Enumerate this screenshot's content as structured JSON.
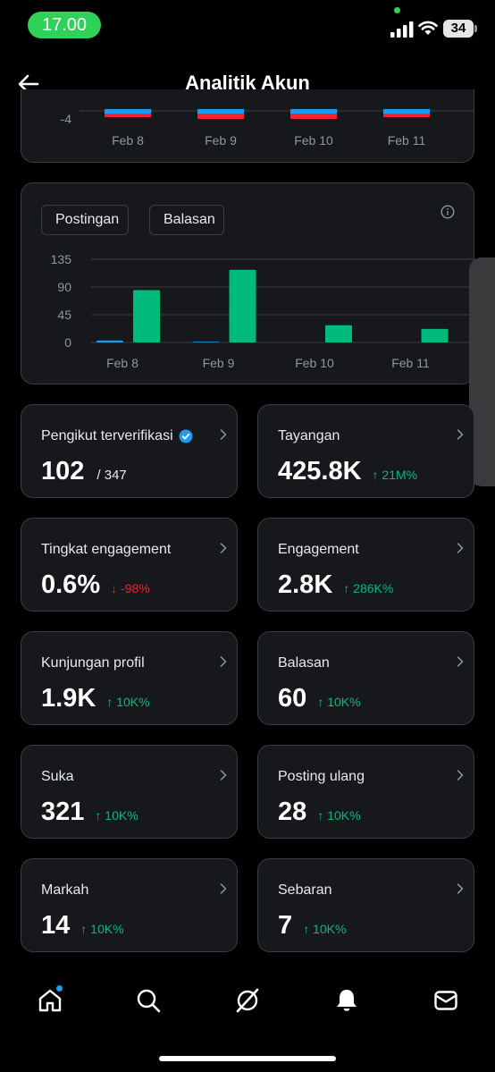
{
  "status_bar": {
    "time": "17.00",
    "battery": "34"
  },
  "header": {
    "title": "Analitik Akun"
  },
  "top_chart": {
    "y_tick": "-4",
    "x_labels": [
      "Feb 8",
      "Feb 9",
      "Feb 10",
      "Feb 11"
    ]
  },
  "legend": {
    "posts": "Postingan",
    "replies": "Balasan"
  },
  "colors": {
    "posts": "#1d9bf0",
    "replies": "#00ba7c",
    "negative": "#f4212e",
    "positive": "#00ba7c"
  },
  "chart_data": {
    "type": "bar",
    "categories": [
      "Feb 8",
      "Feb 9",
      "Feb 10",
      "Feb 11"
    ],
    "series": [
      {
        "name": "Postingan",
        "values": [
          3,
          1,
          0,
          0
        ]
      },
      {
        "name": "Balasan",
        "values": [
          85,
          118,
          28,
          22
        ]
      }
    ],
    "y_ticks": [
      "135",
      "90",
      "45",
      "0"
    ],
    "ylim": [
      0,
      135
    ],
    "grid": true,
    "legend_position": "top-left"
  },
  "stats": [
    {
      "label": "Pengikut terverifikasi",
      "value": "102",
      "sub": "/ 347",
      "change": "",
      "dir": ""
    },
    {
      "label": "Tayangan",
      "value": "425.8K",
      "sub": "",
      "change": "↑ 21M%",
      "dir": "up"
    },
    {
      "label": "Tingkat engagement",
      "value": "0.6%",
      "sub": "",
      "change": "↓ -98%",
      "dir": "down"
    },
    {
      "label": "Engagement",
      "value": "2.8K",
      "sub": "",
      "change": "↑ 286K%",
      "dir": "up"
    },
    {
      "label": "Kunjungan profil",
      "value": "1.9K",
      "sub": "",
      "change": "↑ 10K%",
      "dir": "up"
    },
    {
      "label": "Balasan",
      "value": "60",
      "sub": "",
      "change": "↑ 10K%",
      "dir": "up"
    },
    {
      "label": "Suka",
      "value": "321",
      "sub": "",
      "change": "↑ 10K%",
      "dir": "up"
    },
    {
      "label": "Posting ulang",
      "value": "28",
      "sub": "",
      "change": "↑ 10K%",
      "dir": "up"
    },
    {
      "label": "Markah",
      "value": "14",
      "sub": "",
      "change": "↑ 10K%",
      "dir": "up"
    },
    {
      "label": "Sebaran",
      "value": "7",
      "sub": "",
      "change": "↑ 10K%",
      "dir": "up"
    }
  ],
  "nav": [
    "home-icon",
    "search-icon",
    "grok-icon",
    "notifications-icon",
    "messages-icon"
  ]
}
